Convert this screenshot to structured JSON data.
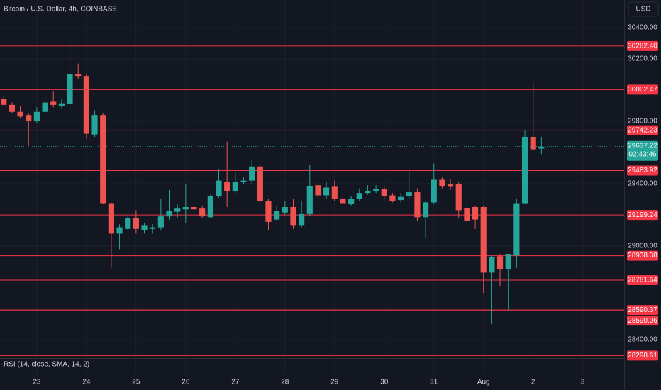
{
  "chart_data": {
    "type": "candlestick",
    "title": "Bitcoin / U.S. Dollar, 4h, COINBASE",
    "currency": "USD",
    "indicator": "RSI (14, close, SMA, 14, 2)",
    "countdown": "02:43:46",
    "up_color": "#26a69a",
    "down_color": "#ef5350",
    "level_color": "#f23645",
    "open": [
      29945,
      29905,
      29860,
      29840,
      29800,
      29860,
      29925,
      29900,
      29910,
      30100,
      30090,
      29715,
      29840,
      29275,
      29080,
      29110,
      29180,
      29100,
      29110,
      29120,
      29190,
      29220,
      29235,
      29250,
      29240,
      29185,
      29320,
      29410,
      29350,
      29410,
      29420,
      29510,
      29290,
      29170,
      29215,
      29250,
      29130,
      29205,
      29390,
      29325,
      29380,
      29305,
      29270,
      29300,
      29340,
      29355,
      29365,
      29325,
      29295,
      29320,
      29345,
      29185,
      29280,
      29425,
      29395,
      29400,
      29245,
      29250,
      29250,
      28830,
      28935,
      28850,
      28940,
      29275,
      29700,
      29625
    ],
    "high": [
      29960,
      29920,
      29900,
      29850,
      29890,
      29990,
      29990,
      29940,
      30360,
      30170,
      30100,
      29870,
      29850,
      29280,
      29140,
      29200,
      29230,
      29150,
      29140,
      29300,
      29360,
      29270,
      29400,
      29280,
      29260,
      29330,
      29490,
      29670,
      29470,
      29440,
      29550,
      29520,
      29300,
      29260,
      29290,
      29300,
      29290,
      29520,
      29400,
      29410,
      29420,
      29320,
      29320,
      29370,
      29390,
      29390,
      29380,
      29340,
      29340,
      29480,
      29370,
      29290,
      29530,
      29440,
      29430,
      29410,
      29270,
      29260,
      29260,
      28940,
      28950,
      28950,
      29300,
      29740,
      30050,
      29700
    ],
    "low": [
      29895,
      29850,
      29820,
      29640,
      29790,
      29850,
      29890,
      29880,
      29900,
      30070,
      29690,
      29700,
      29270,
      28860,
      28980,
      29100,
      29080,
      29080,
      29080,
      29100,
      29170,
      29180,
      29150,
      29200,
      29180,
      29180,
      29310,
      29250,
      29340,
      29400,
      29400,
      29280,
      29100,
      29160,
      29200,
      29110,
      29120,
      29190,
      29310,
      29300,
      29290,
      29260,
      29260,
      29290,
      29330,
      29340,
      29300,
      29280,
      29280,
      29300,
      29160,
      29050,
      29270,
      29370,
      29360,
      29180,
      29150,
      29110,
      28700,
      28500,
      28740,
      28590,
      28860,
      29270,
      29610,
      29590
    ],
    "close": [
      29905,
      29860,
      29830,
      29800,
      29860,
      29920,
      29905,
      29915,
      30100,
      30090,
      29720,
      29840,
      29275,
      29080,
      29120,
      29180,
      29110,
      29130,
      29120,
      29190,
      29225,
      29240,
      29250,
      29235,
      29190,
      29320,
      29420,
      29350,
      29410,
      29420,
      29510,
      29290,
      29155,
      29225,
      29250,
      29130,
      29205,
      29385,
      29325,
      29375,
      29305,
      29275,
      29300,
      29340,
      29355,
      29365,
      29320,
      29290,
      29315,
      29345,
      29185,
      29280,
      29425,
      29385,
      29380,
      29230,
      29160,
      29170,
      28830,
      28930,
      28850,
      28950,
      29275,
      29700,
      29620,
      29637.22
    ],
    "xlim": [
      -0.45,
      75
    ],
    "xticks": [
      {
        "value": 4,
        "label": "23"
      },
      {
        "value": 10,
        "label": "24"
      },
      {
        "value": 16,
        "label": "25"
      },
      {
        "value": 22,
        "label": "26"
      },
      {
        "value": 28,
        "label": "27"
      },
      {
        "value": 34,
        "label": "28"
      },
      {
        "value": 40,
        "label": "29"
      },
      {
        "value": 46,
        "label": "30"
      },
      {
        "value": 52,
        "label": "31"
      },
      {
        "value": 58,
        "label": "Aug"
      },
      {
        "value": 64,
        "label": "2"
      },
      {
        "value": 70,
        "label": "3"
      }
    ],
    "ylim": [
      28282,
      30577
    ],
    "yticks": [
      {
        "value": 30400,
        "label": "30400.00"
      },
      {
        "value": 30200,
        "label": "30200.00"
      },
      {
        "value": 29800,
        "label": "29800.00"
      },
      {
        "value": 29400,
        "label": "29400.00"
      },
      {
        "value": 29000,
        "label": "29000.00"
      },
      {
        "value": 28400,
        "label": "28400.00"
      }
    ],
    "levels": [
      {
        "value": 30282.4,
        "label": "30282.40"
      },
      {
        "value": 30002.47,
        "label": "30002.47"
      },
      {
        "value": 29742.23,
        "label": "29742.23"
      },
      {
        "value": 29483.92,
        "label": "29483.92"
      },
      {
        "value": 29199.24,
        "label": "29199.24"
      },
      {
        "value": 28938.38,
        "label": "28938.38"
      },
      {
        "value": 28781.64,
        "label": "28781.64"
      },
      {
        "value": 28590.37,
        "label": "28590.37"
      },
      {
        "value": 28590.06,
        "label": "28590.06"
      },
      {
        "value": 28298.61,
        "label": "28298.61"
      }
    ],
    "last_price": 29637.22,
    "grid": true
  }
}
